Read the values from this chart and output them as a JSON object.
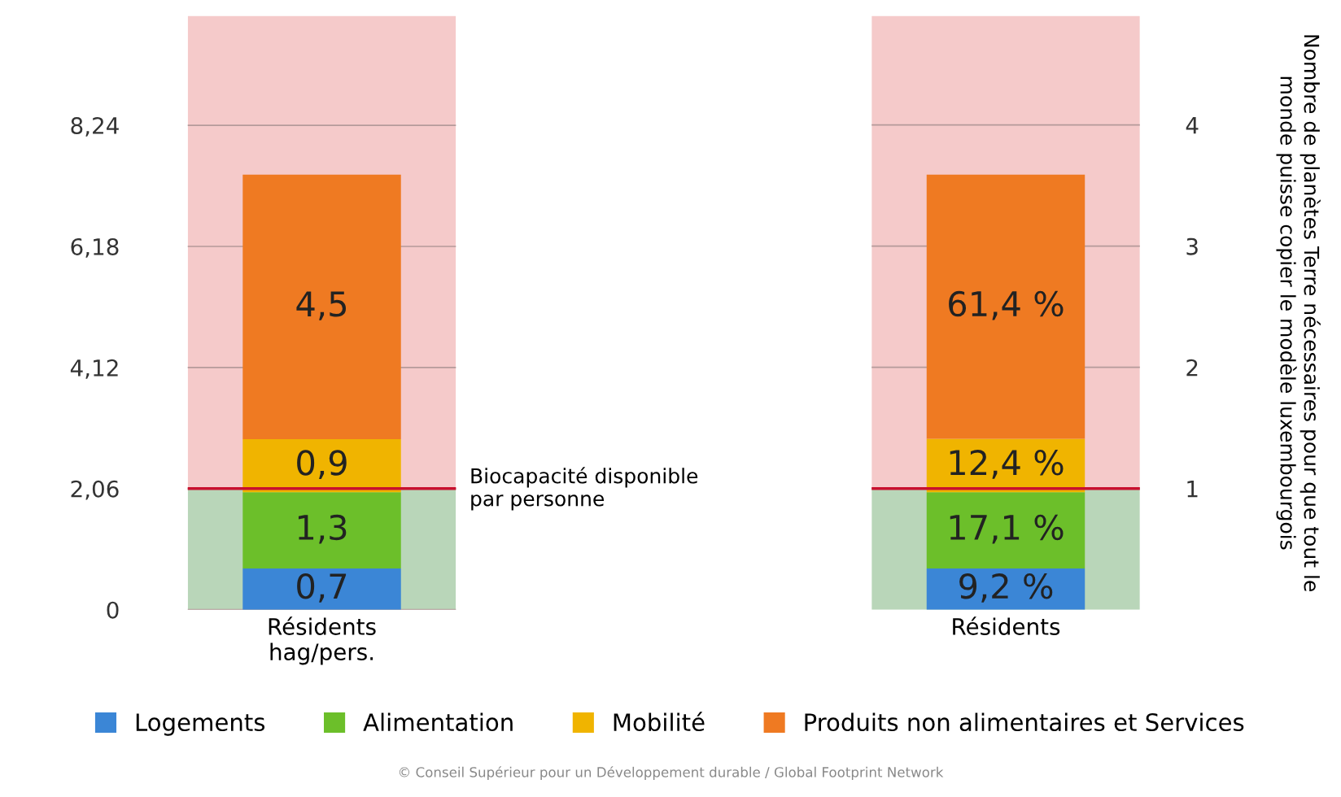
{
  "chart_data": [
    {
      "type": "bar",
      "stacked": true,
      "categories": [
        "Résidents\nhag/pers."
      ],
      "ylim": [
        0,
        10.1
      ],
      "yticks": [
        0,
        {
          "value": 2.06,
          "label": "2,06"
        },
        {
          "value": 4.12,
          "label": "4,12"
        },
        {
          "value": 6.18,
          "label": "6,18"
        },
        {
          "value": 8.24,
          "label": "8,24"
        }
      ],
      "grid": "y",
      "legend": "bottom",
      "series": [
        {
          "name": "Logements",
          "color": "#3b86d6",
          "values": [
            0.7
          ],
          "value_labels": [
            "0,7"
          ]
        },
        {
          "name": "Alimentation",
          "color": "#6cbf2a",
          "values": [
            1.3
          ],
          "value_labels": [
            "1,3"
          ]
        },
        {
          "name": "Mobilité",
          "color": "#f0b400",
          "values": [
            0.9
          ],
          "value_labels": [
            "0,9"
          ]
        },
        {
          "name": "Produits non alimentaires et Services",
          "color": "#ef7a22",
          "values": [
            4.5
          ],
          "value_labels": [
            "4,5"
          ]
        }
      ],
      "bands": [
        {
          "axis": "y",
          "from": 0,
          "to": 2.06,
          "color": "#b9d6b9"
        },
        {
          "axis": "y",
          "from": 2.06,
          "to": 10.1,
          "color": "#f5caca"
        }
      ],
      "ref_lines": [
        {
          "axis": "y",
          "value": 2.06,
          "label": "Biocapacité disponible\npar personne",
          "color": "#c8102e"
        }
      ],
      "annotations": [
        "© Conseil Supérieur pour un Développement durable / Global Footprint Network"
      ]
    },
    {
      "type": "bar",
      "stacked": true,
      "categories": [
        "Résidents"
      ],
      "y2lim": [
        0,
        4.9
      ],
      "y2ticks": [
        1,
        2,
        3,
        4
      ],
      "grid": "y2",
      "tick_labels": "y2",
      "y2label": "Nombre de planètes Terre nécessaires pour que tout le monde puisse copier le modèle luxembourgois",
      "series": [
        {
          "axis": "y2",
          "color": "#3b86d6",
          "values": [
            0.34
          ]
        },
        {
          "axis": "y2",
          "color": "#6cbf2a",
          "values": [
            0.63
          ]
        },
        {
          "axis": "y2",
          "color": "#f0b400",
          "values": [
            0.44
          ]
        },
        {
          "axis": "y2",
          "color": "#ef7a22",
          "values": [
            2.18
          ]
        }
      ],
      "annotations": [
        "9,2 %",
        "17,1 %",
        "12,4 %",
        "61,4 %"
      ],
      "bands": [
        {
          "axis": "y2",
          "from": 0,
          "to": 1,
          "color": "#b9d6b9"
        },
        {
          "axis": "y2",
          "from": 1,
          "to": 4.9,
          "color": "#f5caca"
        }
      ],
      "ref_lines": [
        {
          "axis": "y2",
          "value": 1,
          "color": "#c8102e"
        }
      ]
    }
  ]
}
